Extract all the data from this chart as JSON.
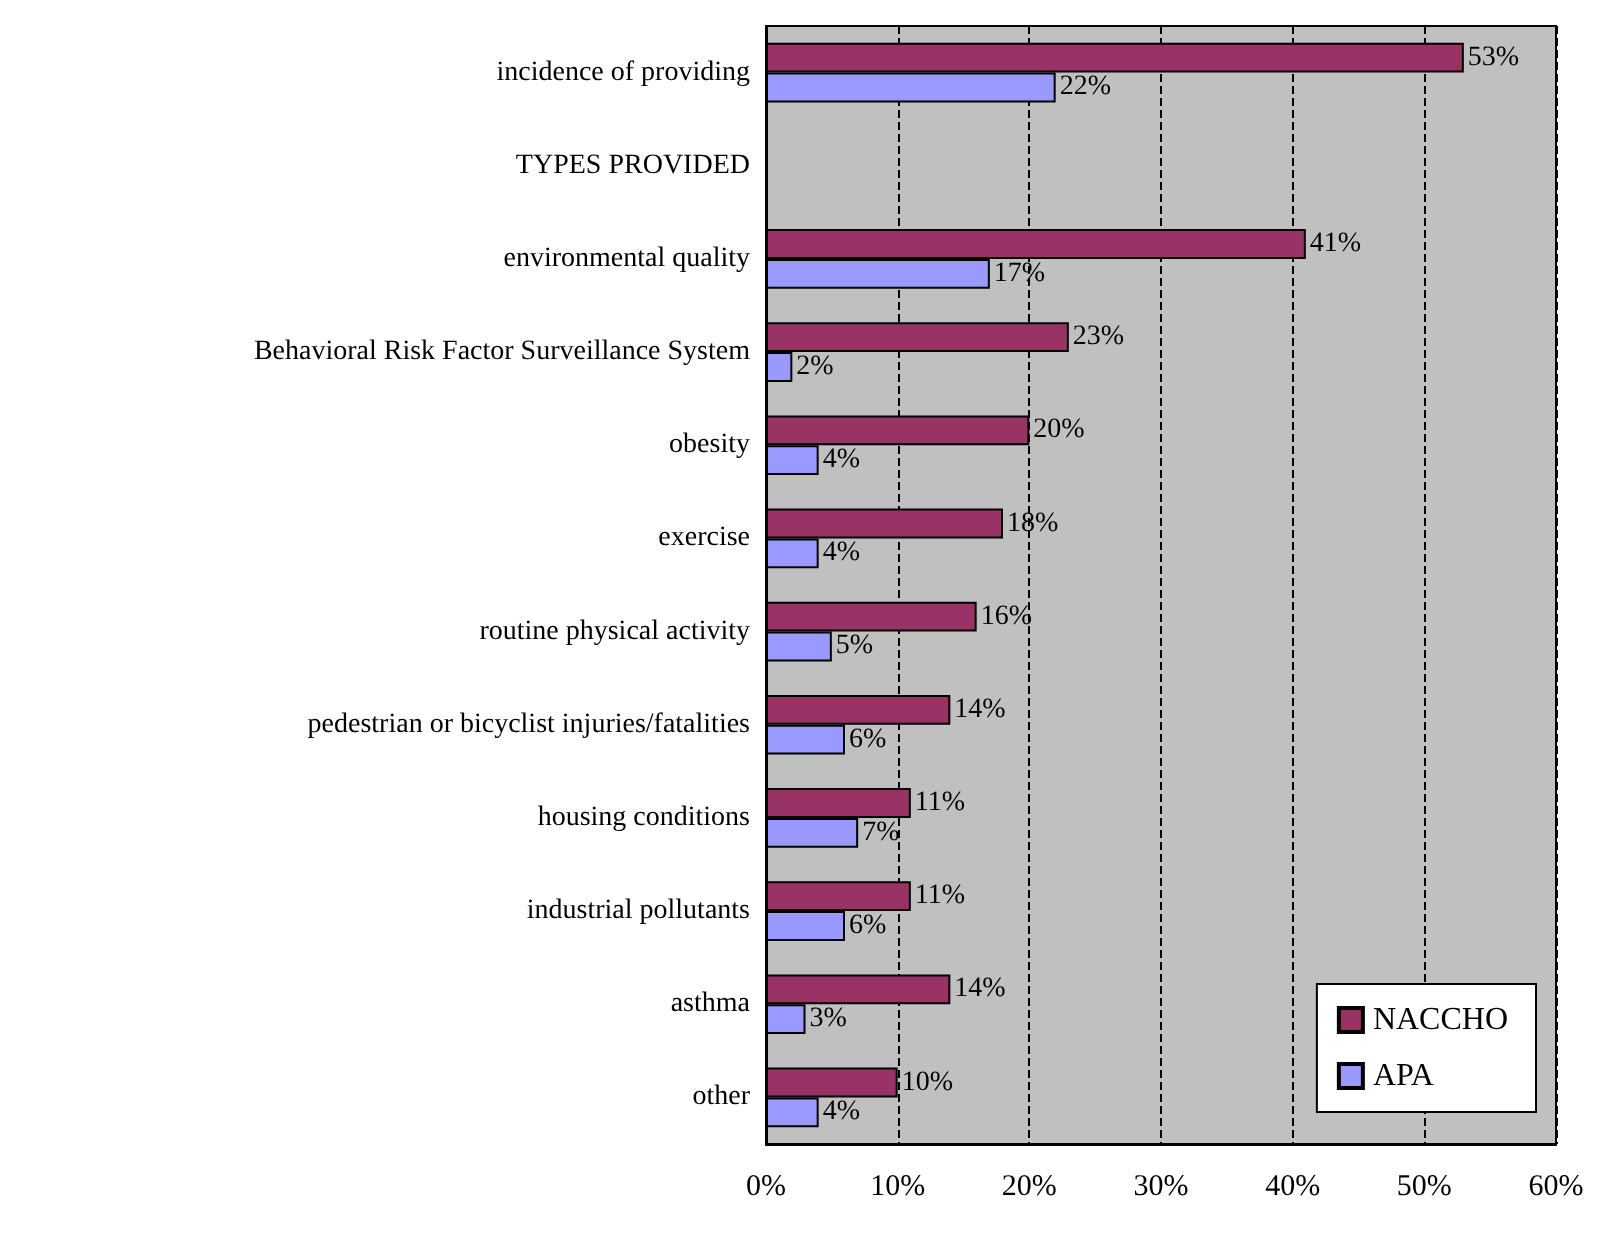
{
  "chart_data": {
    "type": "bar",
    "orientation": "horizontal",
    "categories": [
      "incidence of providing",
      "TYPES PROVIDED",
      "environmental quality",
      "Behavioral Risk Factor Surveillance System",
      "obesity",
      "exercise",
      "routine physical activity",
      "pedestrian or bicyclist injuries/fatalities",
      "housing conditions",
      "industrial pollutants",
      "asthma",
      "other"
    ],
    "series": [
      {
        "name": "NACCHO",
        "color": "#993366",
        "values": [
          53,
          null,
          41,
          23,
          20,
          18,
          16,
          14,
          11,
          11,
          14,
          10
        ],
        "value_labels": [
          "53%",
          null,
          "41%",
          "23%",
          "20%",
          "18%",
          "16%",
          "14%",
          "11%",
          "11%",
          "14%",
          "10%"
        ]
      },
      {
        "name": "APA",
        "color": "#9999ff",
        "values": [
          22,
          null,
          17,
          2,
          4,
          4,
          5,
          6,
          7,
          6,
          3,
          4
        ],
        "value_labels": [
          "22%",
          null,
          "17%",
          "2%",
          "4%",
          "4%",
          "5%",
          "6%",
          "7%",
          "6%",
          "3%",
          "4%"
        ]
      }
    ],
    "xlim": [
      0,
      60
    ],
    "xticks": [
      {
        "value": 0,
        "label": "0%"
      },
      {
        "value": 10,
        "label": "10%"
      },
      {
        "value": 20,
        "label": "20%"
      },
      {
        "value": 30,
        "label": "30%"
      },
      {
        "value": 40,
        "label": "40%"
      },
      {
        "value": 50,
        "label": "50%"
      },
      {
        "value": 60,
        "label": "60%"
      }
    ],
    "grid": "x",
    "legend": "bottom right"
  }
}
